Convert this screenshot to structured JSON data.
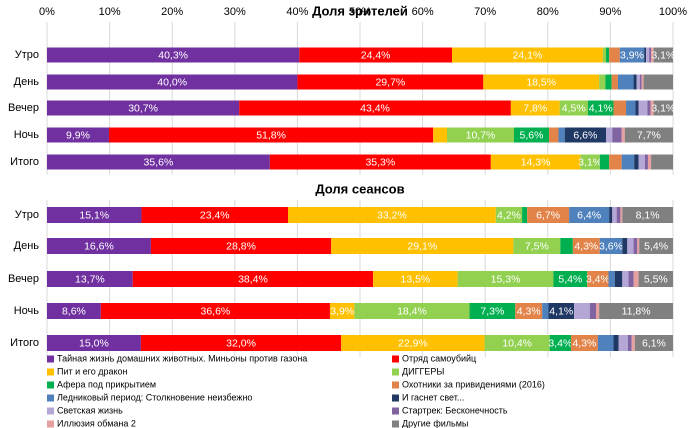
{
  "chart_data": [
    {
      "type": "stacked-barh",
      "title": "Доля зрителей",
      "categories": [
        "Утро",
        "День",
        "Вечер",
        "Ночь",
        "Итого"
      ],
      "xlim": [
        0,
        100
      ],
      "xticks": [
        {
          "value": 0,
          "label": "0%"
        },
        {
          "value": 10,
          "label": "10%"
        },
        {
          "value": 20,
          "label": "20%"
        },
        {
          "value": 30,
          "label": "30%"
        },
        {
          "value": 40,
          "label": "40%"
        },
        {
          "value": 50,
          "label": "50%"
        },
        {
          "value": 60,
          "label": "60%"
        },
        {
          "value": 70,
          "label": "70%"
        },
        {
          "value": 80,
          "label": "80%"
        },
        {
          "value": 90,
          "label": "90%"
        },
        {
          "value": 100,
          "label": "100%"
        }
      ],
      "grid": true,
      "series": [
        {
          "color": "#7030a0",
          "values": [
            40.3,
            40.0,
            30.7,
            9.9,
            35.6
          ],
          "value_labels": [
            "40,3%",
            "40,0%",
            "30,7%",
            "9,9%",
            "35,6%"
          ]
        },
        {
          "color": "#ff0000",
          "values": [
            24.4,
            29.7,
            43.4,
            51.8,
            35.3
          ],
          "value_labels": [
            "24,4%",
            "29,7%",
            "43,4%",
            "51,8%",
            "35,3%"
          ]
        },
        {
          "color": "#ffc000",
          "values": [
            24.1,
            18.5,
            7.8,
            2.2,
            14.3
          ],
          "value_labels": [
            "24,1%",
            "18,5%",
            "7,8%",
            null,
            "14,3%"
          ]
        },
        {
          "color": "#92d050",
          "values": [
            0.5,
            1.0,
            4.5,
            10.7,
            3.1
          ],
          "value_labels": [
            null,
            null,
            "4,5%",
            "10,7%",
            "3,1%"
          ]
        },
        {
          "color": "#00b050",
          "values": [
            0.5,
            1.0,
            4.1,
            5.6,
            1.5
          ],
          "value_labels": [
            null,
            null,
            "4,1%",
            "5,6%",
            null
          ]
        },
        {
          "color": "#e2844a",
          "values": [
            1.7,
            1.0,
            2.0,
            1.5,
            2.0
          ],
          "value_labels": [
            null,
            null,
            null,
            null,
            null
          ]
        },
        {
          "color": "#4f81bd",
          "values": [
            3.9,
            2.5,
            1.5,
            1.0,
            2.0
          ],
          "value_labels": [
            "3,9%",
            null,
            null,
            null,
            null
          ]
        },
        {
          "color": "#1f3864",
          "values": [
            0.3,
            0.5,
            0.5,
            6.6,
            0.7
          ],
          "value_labels": [
            null,
            null,
            null,
            "6,6%",
            null
          ]
        },
        {
          "color": "#b4a7d6",
          "values": [
            0.5,
            0.5,
            1.4,
            1.0,
            1.0
          ],
          "value_labels": [
            null,
            null,
            null,
            null,
            null
          ]
        },
        {
          "color": "#8064a2",
          "values": [
            0.3,
            0.3,
            0.5,
            1.5,
            0.5
          ],
          "value_labels": [
            null,
            null,
            null,
            null,
            null
          ]
        },
        {
          "color": "#e6a0a0",
          "values": [
            0.4,
            0.3,
            0.5,
            0.5,
            0.5
          ],
          "value_labels": [
            null,
            null,
            null,
            null,
            null
          ]
        },
        {
          "color": "#808080",
          "values": [
            3.1,
            4.7,
            3.1,
            7.7,
            3.5
          ],
          "value_labels": [
            "3,1%",
            null,
            "3,1%",
            "7,7%",
            null
          ]
        }
      ]
    },
    {
      "type": "stacked-barh",
      "title": "Доля сеансов",
      "categories": [
        "Утро",
        "День",
        "Вечер",
        "Ночь",
        "Итого"
      ],
      "xlim": [
        0,
        100
      ],
      "grid": true,
      "series": [
        {
          "name": "Тайная жизнь домашних животных. Миньоны против газона",
          "color": "#7030a0",
          "values": [
            15.1,
            16.6,
            13.7,
            8.6,
            15.0
          ],
          "value_labels": [
            "15,1%",
            "16,6%",
            "13,7%",
            "8,6%",
            "15,0%"
          ]
        },
        {
          "name": "Отряд самоубийц",
          "color": "#ff0000",
          "values": [
            23.4,
            28.8,
            38.4,
            36.6,
            32.0
          ],
          "value_labels": [
            "23,4%",
            "28,8%",
            "38,4%",
            "36,6%",
            "32,0%"
          ]
        },
        {
          "name": "Пит и его дракон",
          "color": "#ffc000",
          "values": [
            33.2,
            29.1,
            13.5,
            3.9,
            22.9
          ],
          "value_labels": [
            "33,2%",
            "29,1%",
            "13,5%",
            "3,9%",
            "22,9%"
          ]
        },
        {
          "name": "ДИГГЕРЫ",
          "color": "#92d050",
          "values": [
            4.2,
            7.5,
            15.3,
            18.4,
            10.4
          ],
          "value_labels": [
            "4,2%",
            "7,5%",
            "15,3%",
            "18,4%",
            "10,4%"
          ]
        },
        {
          "name": "Афера под прикрытием",
          "color": "#00b050",
          "values": [
            0.8,
            2.0,
            5.4,
            7.3,
            3.4
          ],
          "value_labels": [
            null,
            null,
            "5,4%",
            "7,3%",
            "3,4%"
          ]
        },
        {
          "name": "Охотники за привидениями (2016)",
          "color": "#e2844a",
          "values": [
            6.7,
            4.3,
            3.4,
            4.3,
            4.3
          ],
          "value_labels": [
            "6,7%",
            "4,3%",
            "3,4%",
            "4,3%",
            "4,3%"
          ]
        },
        {
          "name": "Ледниковый период: Столкновение неизбежно",
          "color": "#4f81bd",
          "values": [
            6.4,
            3.6,
            1.0,
            1.0,
            2.5
          ],
          "value_labels": [
            "6,4%",
            "3,6%",
            null,
            null,
            null
          ]
        },
        {
          "name": "И гаснет свет...",
          "color": "#1f3864",
          "values": [
            0.5,
            0.8,
            1.2,
            4.1,
            0.8
          ],
          "value_labels": [
            null,
            null,
            null,
            "4,1%",
            null
          ]
        },
        {
          "name": "Светская жизнь",
          "color": "#b4a7d6",
          "values": [
            0.7,
            1.0,
            1.0,
            2.5,
            1.5
          ],
          "value_labels": [
            null,
            null,
            null,
            null,
            null
          ]
        },
        {
          "name": "Стартрек: Бесконечность",
          "color": "#8064a2",
          "values": [
            0.6,
            0.6,
            0.8,
            1.0,
            0.6
          ],
          "value_labels": [
            null,
            null,
            null,
            null,
            null
          ]
        },
        {
          "name": "Иллюзия обмана 2",
          "color": "#e6a0a0",
          "values": [
            0.3,
            0.3,
            0.8,
            0.5,
            0.5
          ],
          "value_labels": [
            null,
            null,
            null,
            null,
            null
          ]
        },
        {
          "name": "Другие фильмы",
          "color": "#808080",
          "values": [
            8.1,
            5.4,
            5.5,
            11.8,
            6.1
          ],
          "value_labels": [
            "8,1%",
            "5,4%",
            "5,5%",
            "11,8%",
            "6,1%"
          ]
        }
      ]
    }
  ]
}
